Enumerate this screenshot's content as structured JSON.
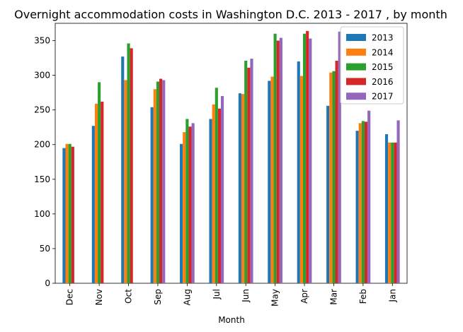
{
  "chart_data": {
    "type": "bar",
    "title": "Overnight accommodation costs in Washington D.C. 2013 - 2017 , by month",
    "xlabel": "Month",
    "ylabel": "",
    "ylim": [
      0,
      375
    ],
    "yticks": [
      0,
      50,
      100,
      150,
      200,
      250,
      300,
      350
    ],
    "grid": false,
    "legend_position": "top-right",
    "categories": [
      "Dec",
      "Nov",
      "Oct",
      "Sep",
      "Aug",
      "Jul",
      "Jun",
      "May",
      "Apr",
      "Mar",
      "Feb",
      "Jan"
    ],
    "series": [
      {
        "name": "2013",
        "color": "#1f77b4",
        "values": [
          195,
          227,
          327,
          254,
          201,
          237,
          274,
          292,
          320,
          256,
          220,
          215
        ]
      },
      {
        "name": "2014",
        "color": "#ff7f0e",
        "values": [
          201,
          259,
          293,
          280,
          218,
          258,
          273,
          298,
          299,
          304,
          231,
          203
        ]
      },
      {
        "name": "2015",
        "color": "#2ca02c",
        "values": [
          201,
          290,
          346,
          291,
          237,
          282,
          321,
          360,
          360,
          306,
          234,
          203
        ]
      },
      {
        "name": "2016",
        "color": "#d62728",
        "values": [
          197,
          262,
          339,
          295,
          226,
          252,
          311,
          350,
          364,
          321,
          233,
          203
        ]
      },
      {
        "name": "2017",
        "color": "#9467bd",
        "values": [
          0,
          0,
          0,
          293,
          231,
          270,
          324,
          354,
          353,
          363,
          249,
          235
        ]
      }
    ]
  }
}
